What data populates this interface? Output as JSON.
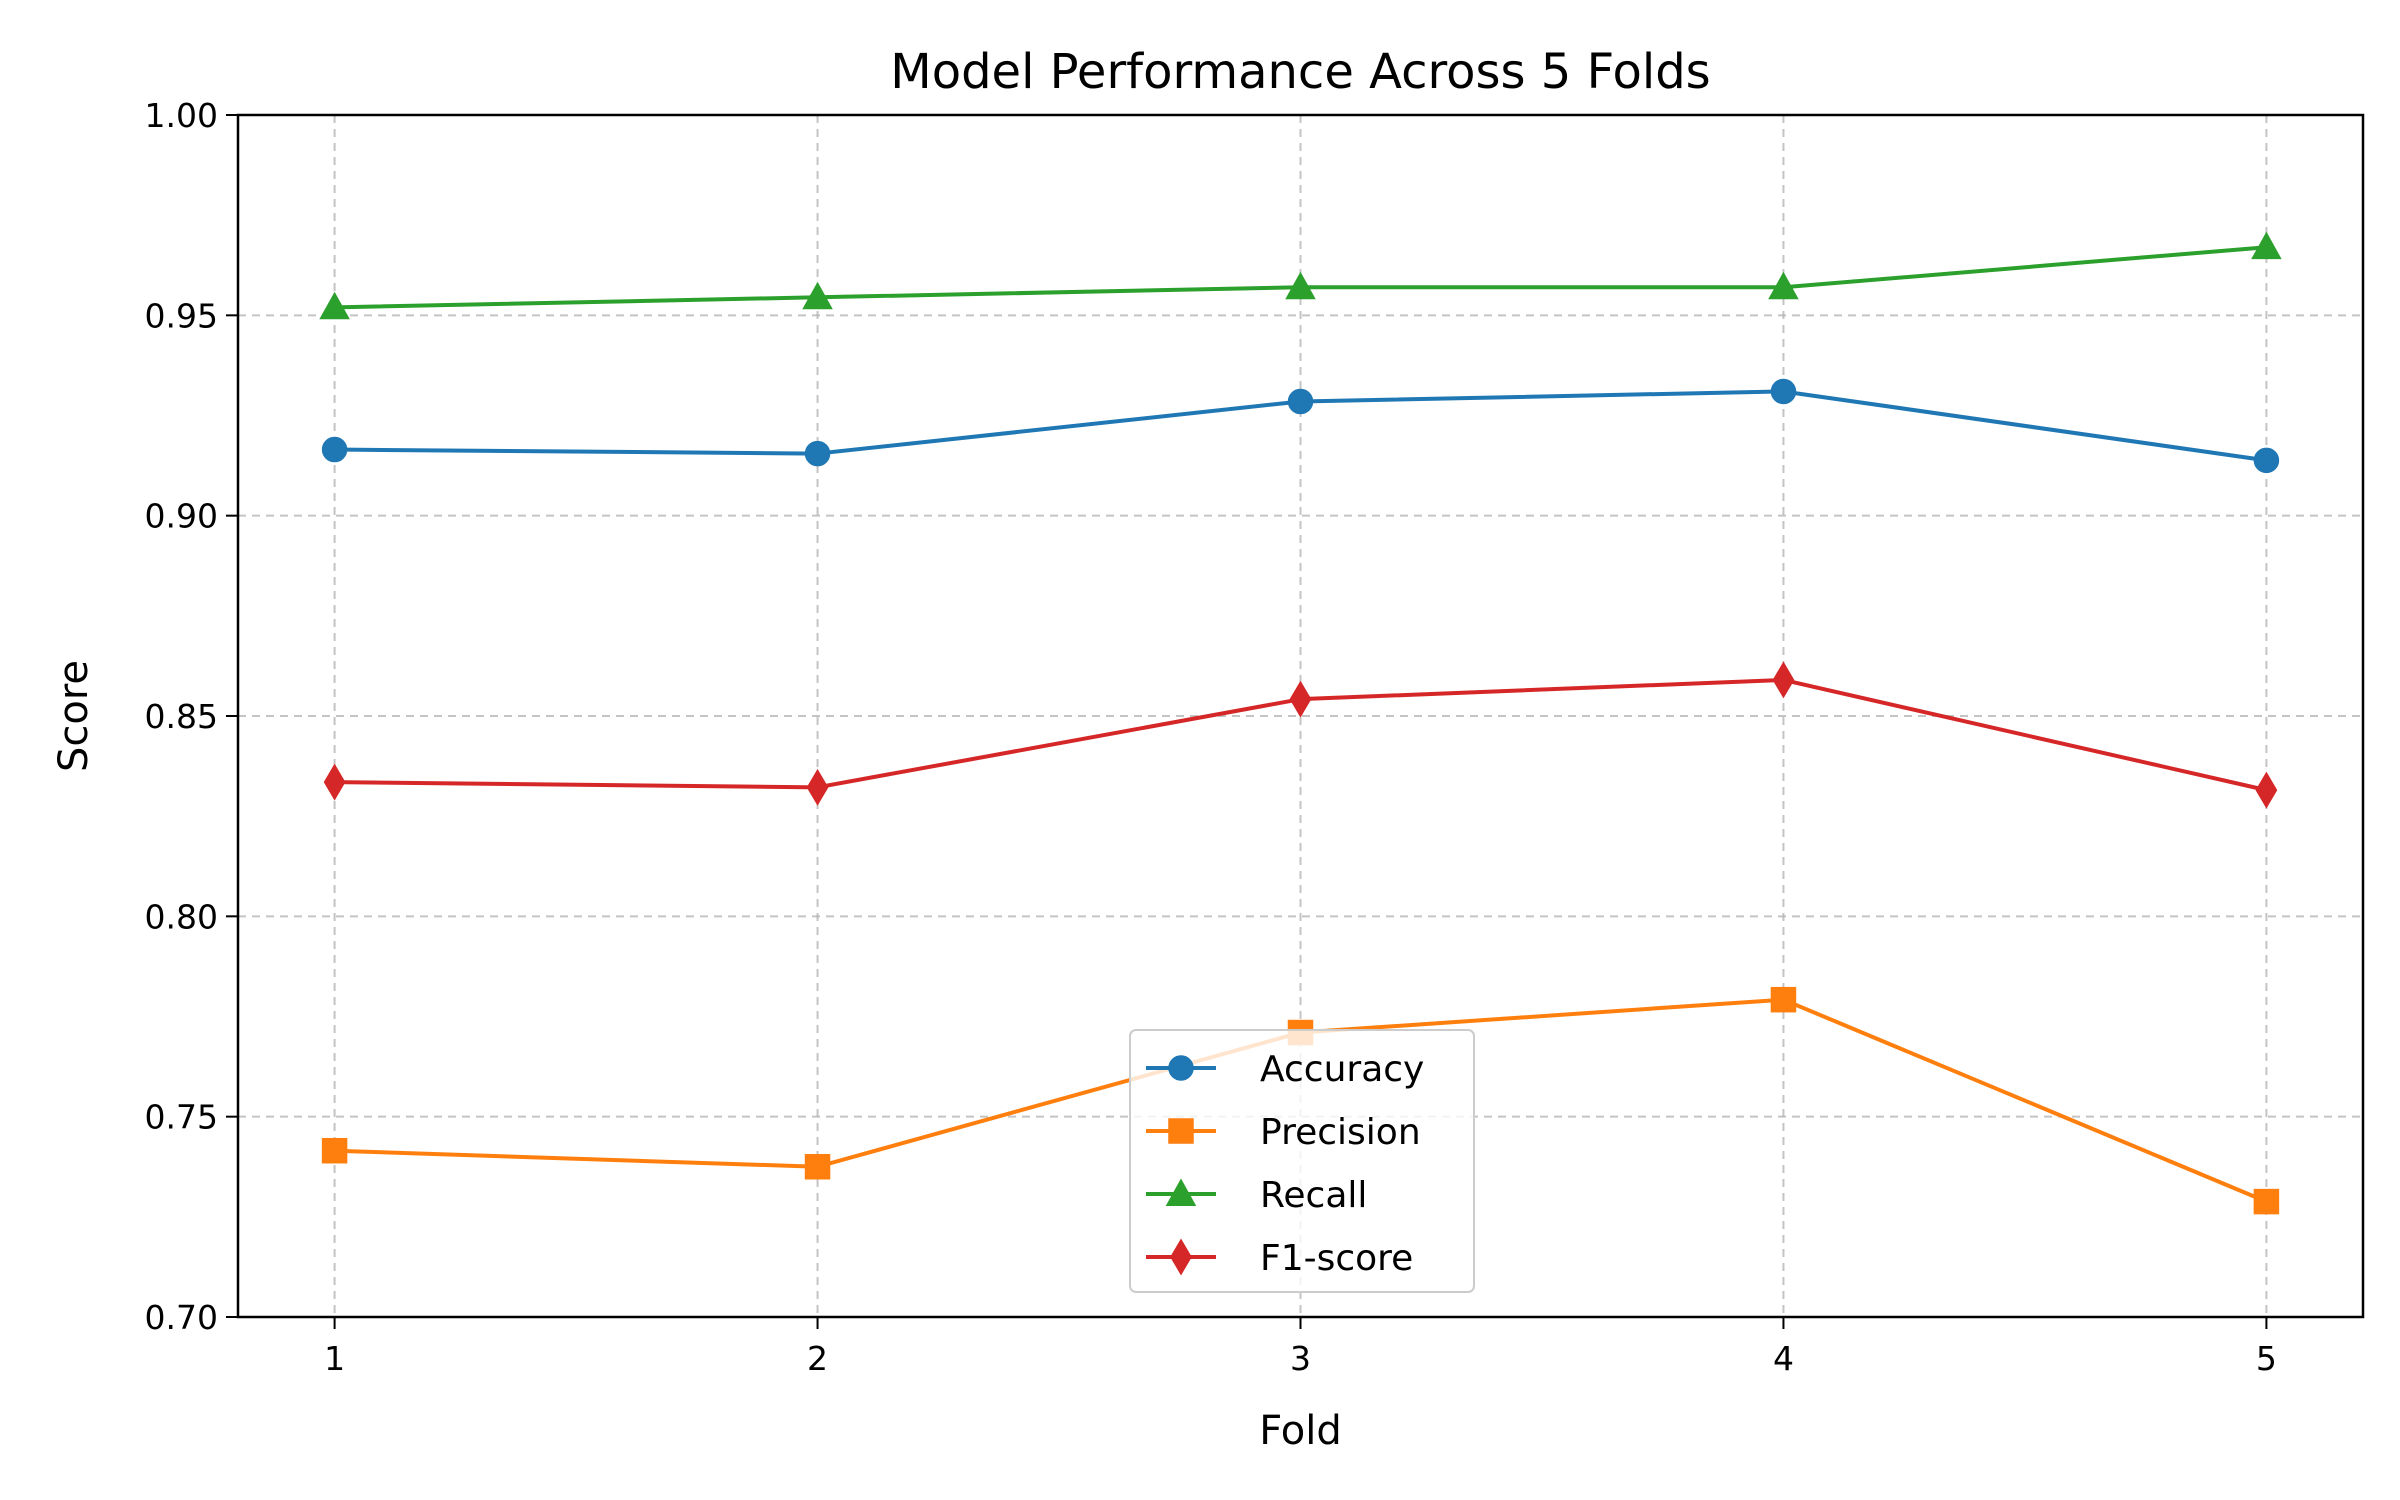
{
  "chart_data": {
    "type": "line",
    "title": "Model Performance Across 5 Folds",
    "xlabel": "Fold",
    "ylabel": "Score",
    "x": [
      1,
      2,
      3,
      4,
      5
    ],
    "xlim": [
      0.8,
      5.2
    ],
    "ylim": [
      0.7,
      1.0
    ],
    "yticks": [
      "0.70",
      "0.75",
      "0.80",
      "0.85",
      "0.90",
      "0.95",
      "1.00"
    ],
    "xticks": [
      "1",
      "2",
      "3",
      "4",
      "5"
    ],
    "grid": true,
    "legend": "lower center",
    "series": [
      {
        "name": "Accuracy",
        "values": [
          0.9165,
          0.9155,
          0.9285,
          0.931,
          0.9138
        ],
        "color": "#1f77b4",
        "marker": "circle"
      },
      {
        "name": "Precision",
        "values": [
          0.7415,
          0.7375,
          0.771,
          0.7792,
          0.7288
        ],
        "color": "#ff7f0e",
        "marker": "square"
      },
      {
        "name": "Recall",
        "values": [
          0.952,
          0.9545,
          0.957,
          0.957,
          0.967
        ],
        "color": "#2ca02c",
        "marker": "triangle"
      },
      {
        "name": "F1-score",
        "values": [
          0.8335,
          0.8322,
          0.8542,
          0.859,
          0.8315
        ],
        "color": "#d62728",
        "marker": "diamond"
      }
    ]
  }
}
